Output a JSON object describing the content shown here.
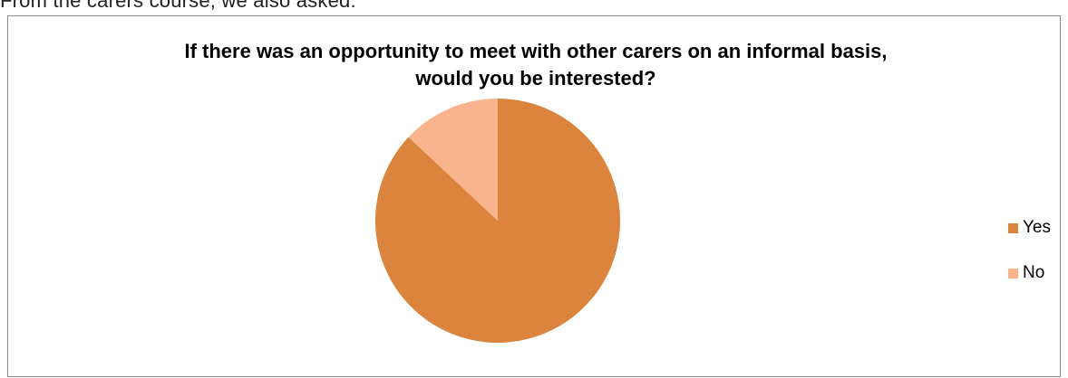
{
  "document": {
    "text_above": "From the carers course, we also asked:"
  },
  "chart_data": {
    "type": "pie",
    "title": "If there was an opportunity to meet with other carers on an informal basis, would you be interested?",
    "categories": [
      "Yes",
      "No"
    ],
    "values": [
      87,
      13
    ],
    "colors": [
      "#db843d",
      "#f9b48e"
    ],
    "legend_position": "right"
  }
}
